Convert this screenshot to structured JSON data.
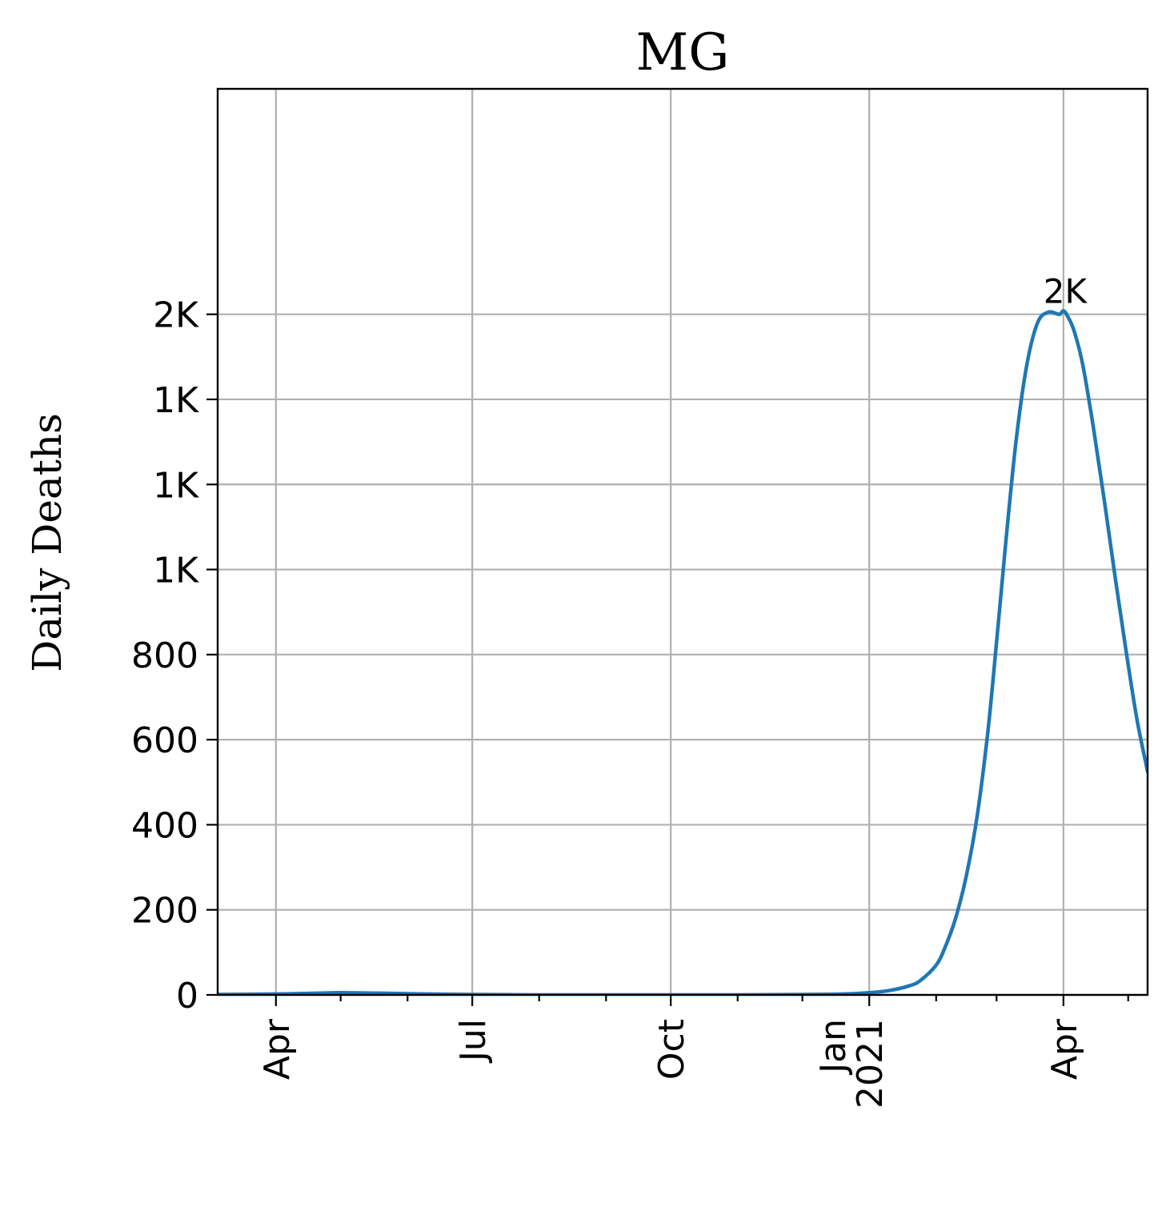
{
  "chart_data": {
    "type": "line",
    "title": "MG",
    "xlabel": "",
    "ylabel": "Daily Deaths",
    "x_range": [
      "2020-03-05",
      "2021-05-10"
    ],
    "ylim": [
      0,
      2130
    ],
    "grid": true,
    "line_color": "#1f77b4",
    "x_ticks": [
      {
        "date": "2020-04-01",
        "labels": [
          "Apr"
        ]
      },
      {
        "date": "2020-07-01",
        "labels": [
          "Jul"
        ]
      },
      {
        "date": "2020-10-01",
        "labels": [
          "Oct"
        ]
      },
      {
        "date": "2021-01-01",
        "labels": [
          "Jan",
          "2021"
        ]
      },
      {
        "date": "2021-04-01",
        "labels": [
          "Apr"
        ]
      }
    ],
    "x_minor_ticks": [
      "2020-03-01",
      "2020-05-01",
      "2020-06-01",
      "2020-08-01",
      "2020-09-01",
      "2020-11-01",
      "2020-12-01",
      "2021-02-01",
      "2021-03-01",
      "2021-05-01"
    ],
    "y_ticks": [
      {
        "value": 0,
        "label": "0"
      },
      {
        "value": 200,
        "label": "200"
      },
      {
        "value": 400,
        "label": "400"
      },
      {
        "value": 600,
        "label": "600"
      },
      {
        "value": 800,
        "label": "800"
      },
      {
        "value": 1000,
        "label": "1K"
      },
      {
        "value": 1200,
        "label": "1K"
      },
      {
        "value": 1400,
        "label": "1K"
      },
      {
        "value": 1600,
        "label": "2K"
      }
    ],
    "annotation": {
      "label": "2K",
      "date": "2021-04-01",
      "value": 1608
    },
    "series": [
      {
        "x": [
          "2020-03-05",
          "2020-04-01",
          "2020-04-20",
          "2020-05-01",
          "2020-05-20",
          "2020-06-10",
          "2020-07-01",
          "2020-08-01",
          "2020-09-01",
          "2020-10-01",
          "2020-11-01",
          "2020-12-01",
          "2020-12-20",
          "2021-01-01",
          "2021-01-10",
          "2021-01-20",
          "2021-01-25",
          "2021-02-01",
          "2021-02-05",
          "2021-02-10",
          "2021-02-15",
          "2021-02-20",
          "2021-02-25",
          "2021-03-01",
          "2021-03-05",
          "2021-03-10",
          "2021-03-15",
          "2021-03-20",
          "2021-03-25",
          "2021-03-30",
          "2021-04-01",
          "2021-04-03",
          "2021-04-06",
          "2021-04-10",
          "2021-04-15",
          "2021-04-20",
          "2021-04-25",
          "2021-04-30",
          "2021-05-05",
          "2021-05-10"
        ],
        "y": [
          1,
          2,
          4,
          5,
          4,
          2,
          1,
          0,
          0,
          0,
          0,
          1,
          2,
          5,
          10,
          22,
          35,
          70,
          110,
          180,
          280,
          420,
          620,
          830,
          1050,
          1300,
          1480,
          1580,
          1605,
          1600,
          1608,
          1595,
          1560,
          1480,
          1330,
          1160,
          980,
          810,
          650,
          525
        ]
      }
    ]
  }
}
